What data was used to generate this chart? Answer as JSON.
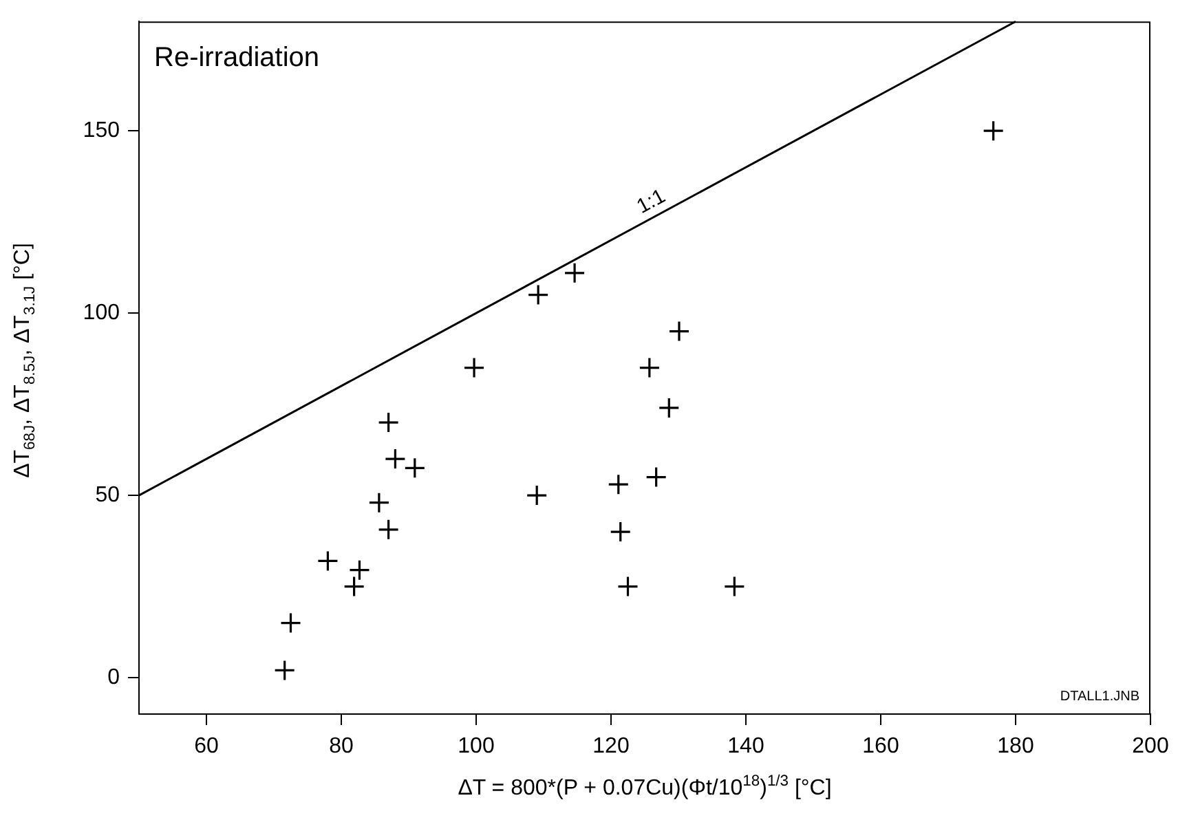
{
  "chart_data": {
    "type": "scatter",
    "xlabel": "ΔT = 800*(P + 0.07Cu)(Φt/10$^{18}$)$^{1/3}$ [°C]",
    "ylabel": "ΔT$_{68J}$, ΔT$_{8.5J}$, ΔT$_{3.1J}$ [°C]",
    "annotations": [
      "Re-irradiation",
      {
        "text": "1:1",
        "x": 127,
        "y": 127
      },
      "DTALL1.JNB"
    ],
    "xlim": [
      50,
      200
    ],
    "xticks": [
      60,
      80,
      100,
      120,
      140,
      160,
      180,
      200
    ],
    "ylim": [
      -10,
      180
    ],
    "yticks": [
      0,
      50,
      100,
      150
    ],
    "grid": false,
    "legend": false,
    "marker": "cross",
    "series": [
      {
        "type": "scatter",
        "color": "#000000",
        "x": [
          87.0,
          88.0,
          90.9,
          85.6,
          87.0,
          78.0,
          82.7,
          81.9,
          72.5,
          71.6,
          109.0,
          121.1,
          121.4,
          122.5,
          99.7,
          109.2,
          114.6,
          130.1,
          125.7,
          128.6,
          126.7,
          138.3,
          176.7
        ],
        "values": [
          70,
          60,
          57.5,
          48,
          40.6,
          32,
          29.5,
          25,
          15,
          2,
          50,
          53,
          40,
          25,
          85,
          105,
          111,
          95,
          85,
          74,
          55,
          25,
          150
        ]
      },
      {
        "type": "line",
        "color": "#000000",
        "marker": "none",
        "line_style": "solid",
        "x": [
          50,
          180
        ],
        "values": [
          50,
          180
        ]
      }
    ]
  }
}
